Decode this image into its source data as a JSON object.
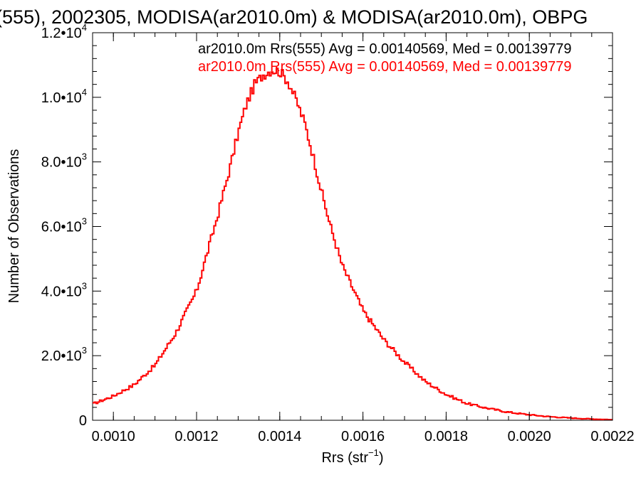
{
  "chart_data": {
    "type": "line",
    "title": "(555), 2002305, MODISA(ar2010.0m) & MODISA(ar2010.0m), OBPG",
    "xlabel_main": "Rrs (str",
    "xlabel_sup": "−1",
    "xlabel_close": ")",
    "ylabel": "Number of Observations",
    "xlim": [
      0.00095,
      0.0022
    ],
    "ylim": [
      0,
      12000
    ],
    "x_ticks": [
      {
        "value": 0.001,
        "label": "0.0010"
      },
      {
        "value": 0.0012,
        "label": "0.0012"
      },
      {
        "value": 0.0014,
        "label": "0.0014"
      },
      {
        "value": 0.0016,
        "label": "0.0016"
      },
      {
        "value": 0.0018,
        "label": "0.0018"
      },
      {
        "value": 0.002,
        "label": "0.0020"
      },
      {
        "value": 0.0022,
        "label": "0.0022"
      }
    ],
    "y_ticks": [
      {
        "value": 0,
        "mant": "0",
        "exp": ""
      },
      {
        "value": 2000,
        "mant": "2.0•10",
        "exp": "3"
      },
      {
        "value": 4000,
        "mant": "4.0•10",
        "exp": "3"
      },
      {
        "value": 6000,
        "mant": "6.0•10",
        "exp": "3"
      },
      {
        "value": 8000,
        "mant": "8.0•10",
        "exp": "3"
      },
      {
        "value": 10000,
        "mant": "1.0•10",
        "exp": "4"
      },
      {
        "value": 12000,
        "mant": "1.2•10",
        "exp": "4"
      }
    ],
    "legend": [
      {
        "text": "ar2010.0m Rrs(555) Avg = 0.00140569, Med = 0.00139779",
        "color": "#000000"
      },
      {
        "text": "ar2010.0m Rrs(555) Avg = 0.00140569, Med = 0.00139779",
        "color": "#ff0000"
      }
    ],
    "series": [
      {
        "color": "#ff0000",
        "style": "step",
        "x": [
          0.00095,
          0.001,
          0.00105,
          0.0011,
          0.00115,
          0.0012,
          0.00125,
          0.00128,
          0.0013,
          0.00132,
          0.00134,
          0.00136,
          0.00138,
          0.0014,
          0.00142,
          0.00144,
          0.00146,
          0.00148,
          0.0015,
          0.00152,
          0.00155,
          0.0016,
          0.00165,
          0.0017,
          0.00175,
          0.0018,
          0.00185,
          0.0019,
          0.00195,
          0.002,
          0.00205,
          0.0021,
          0.00215,
          0.0022
        ],
        "y": [
          500,
          750,
          1100,
          1700,
          2700,
          4000,
          6300,
          7800,
          8900,
          9800,
          10400,
          10700,
          10850,
          10800,
          10500,
          9900,
          9200,
          8200,
          7100,
          6100,
          4800,
          3400,
          2500,
          1800,
          1200,
          800,
          520,
          370,
          250,
          170,
          110,
          70,
          40,
          20
        ]
      }
    ]
  }
}
